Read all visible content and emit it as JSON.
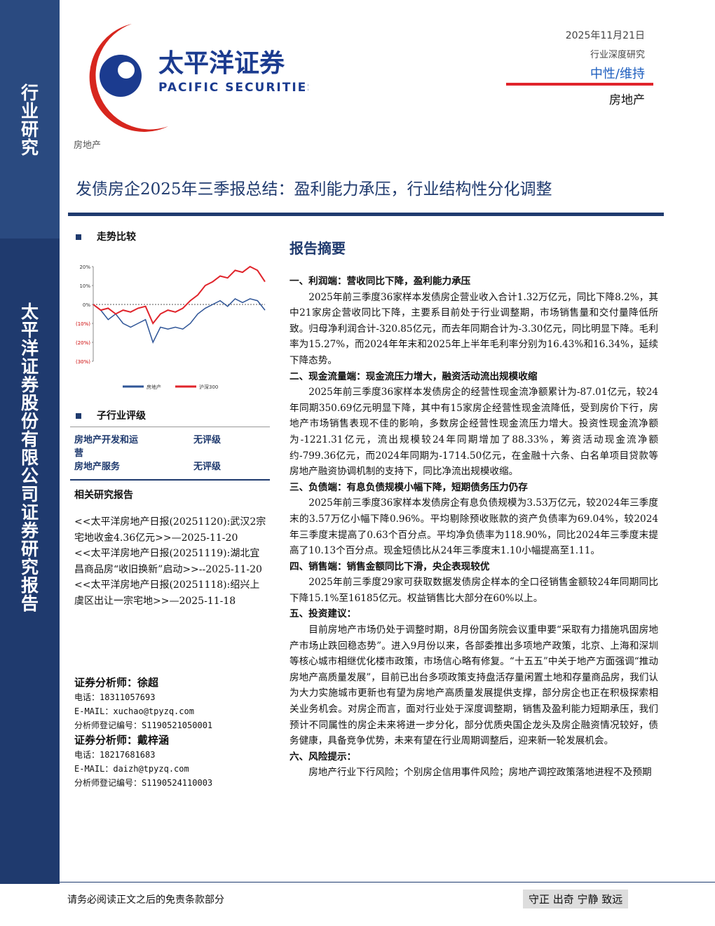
{
  "header": {
    "date": "2025年11月21日",
    "report_type": "行业深度研究",
    "rating": "中性/维持",
    "sector": "房地产"
  },
  "logo": {
    "cn": "太平洋证券",
    "en": "PACIFIC SECURITIES"
  },
  "sidebar": {
    "top": "行业研究",
    "bottom": "太平洋证券股份有限公司证券研究报告"
  },
  "category": "房地产",
  "title": "发债房企2025年三季报总结：盈利能力承压，行业结构性分化调整",
  "trend_heading": "走势比较",
  "chart_data": {
    "type": "line",
    "categories": [
      null,
      null,
      null,
      null,
      null,
      null,
      null,
      null,
      null,
      null,
      null,
      null,
      null,
      null,
      null,
      null,
      null,
      null,
      null,
      null,
      null,
      null,
      null,
      null
    ],
    "series": [
      {
        "name": "房地产",
        "color": "#2f5597",
        "values": [
          0,
          -3,
          -8,
          -5,
          -10,
          -12,
          -10,
          -8,
          -20,
          -12,
          -13,
          -12,
          -13,
          -10,
          -5,
          -2,
          0,
          2,
          -1,
          3,
          1,
          3,
          2,
          -3
        ]
      },
      {
        "name": "沪深300",
        "color": "#e0242b",
        "values": [
          0,
          -3,
          -2,
          -5,
          -3,
          -4,
          -2,
          -1,
          -10,
          -5,
          -3,
          -4,
          -2,
          2,
          5,
          10,
          12,
          15,
          14,
          18,
          17,
          20,
          18,
          12
        ]
      }
    ],
    "ylim": [
      -30,
      20
    ],
    "yticks": [
      {
        "value": 20,
        "label": "20%"
      },
      {
        "value": 10,
        "label": "10%"
      },
      {
        "value": 0,
        "label": "0%"
      },
      {
        "value": -10,
        "label": "(10%)"
      },
      {
        "value": -20,
        "label": "(20%)"
      },
      {
        "value": -30,
        "label": "(30%)"
      }
    ]
  },
  "sub_rating": {
    "heading": "子行业评级",
    "rows": [
      [
        "房地产开发和运营",
        "无评级"
      ],
      [
        "房地产服务",
        "无评级"
      ]
    ]
  },
  "related": {
    "heading": "相关研究报告",
    "items": [
      "<<太平洋房地产日报(20251120):武汉2宗宅地收金4.36亿元>>—2025-11-20",
      "<<太平洋房地产日报(20251119):湖北宜昌商品房“收旧换新”启动>>--2025-11-20",
      "<<太平洋房地产日报(20251118):绍兴上虞区出让一宗宅地>>—2025-11-18"
    ]
  },
  "analysts": [
    {
      "title": "证券分析师：徐超",
      "phone": "电话：18311057693",
      "email": "E-MAIL：xuchao@tpyzq.com",
      "reg": "分析师登记编号：S1190521050001"
    },
    {
      "title": "证券分析师：戴梓涵",
      "phone": "电话：18217681683",
      "email": "E-MAIL：daizh@tpyzq.com",
      "reg": "分析师登记编号：S1190524110003"
    }
  ],
  "summary": {
    "heading": "报告摘要",
    "sections": [
      {
        "heading": "一、利润端：营收同比下降，盈利能力承压",
        "text": "2025年前三季度36家样本发债房企营业收入合计1.32万亿元，同比下降8.2%，其中21家房企营收同比下降，主要系目前处于行业调整期，市场销售量和交付量降低所致。归母净利润合计-320.85亿元，而去年同期合计为-3.30亿元，同比明显下降。毛利率为15.27%，而2024年年末和2025年上半年毛利率分别为16.43%和16.34%，延续下降态势。"
      },
      {
        "heading": "二、现金流量端：现金流压力增大，融资活动流出规模收缩",
        "text": "2025年前三季度36家样本发债房企的经营性现金流净额累计为-87.01亿元，较24年同期350.69亿元明显下降，其中有15家房企经营性现金流降低，受到房价下行，房地产市场销售表现不佳的影响，多数房企经营性现金流压力增大。投资性现金流净额为-1221.31亿元，流出规模较24年同期增加了88.33%，筹资活动现金流净额约-799.36亿元，而2024年同期为-1714.50亿元，在金融十六条、白名单项目贷款等房地产融资协调机制的支持下，同比净流出规模收缩。"
      },
      {
        "heading": "三、负债端：有息负债规模小幅下降，短期债务压力仍存",
        "text": "2025年前三季度36家样本发债房企有息负债规模为3.53万亿元，较2024年三季度末的3.57万亿小幅下降0.96%。平均剔除预收账款的资产负债率为69.04%，较2024年三季度末提高了0.63个百分点。平均净负债率为118.90%，同比2024年三季度末提高了10.13个百分点。现金短债比从24年三季度末1.10小幅提高至1.11。"
      },
      {
        "heading": "四、销售端：销售金额同比下滑，央企表现较优",
        "text": "2025年前三季度29家可获取数据发债房企样本的全口径销售金额较24年同期同比下降15.1%至16185亿元。权益销售比大部分在60%以上。"
      },
      {
        "heading": "五、投资建议：",
        "text": "目前房地产市场仍处于调整时期，8月份国务院会议重申要“采取有力措施巩固房地产市场止跌回稳态势”。进入9月份以来，各部委推出多项地产政策，北京、上海和深圳等核心城市相继优化楼市政策，市场信心略有修复。“十五五”中关于地产方面强调“推动房地产高质量发展”，目前已出台多项政策支持盘活存量闲置土地和存量商品房，我们认为大力实施城市更新也有望为房地产高质量发展提供支撑，部分房企也正在积极探索相关业务机会。对房企而言，面对行业处于深度调整期，销售及盈利能力短期承压，我们预计不同属性的房企未来将进一步分化，部分优质央国企龙头及房企融资情况较好，债务健康，具备竞争优势，未来有望在行业周期调整后，迎来新一轮发展机会。"
      },
      {
        "heading": "六、风险提示：",
        "text": "房地产行业下行风险；个别房企信用事件风险；房地产调控政策落地进程不及预期"
      }
    ]
  },
  "footer": {
    "disclaimer": "请务必阅读正文之后的免责条款部分",
    "motto": "守正 出奇 宁静 致远"
  }
}
